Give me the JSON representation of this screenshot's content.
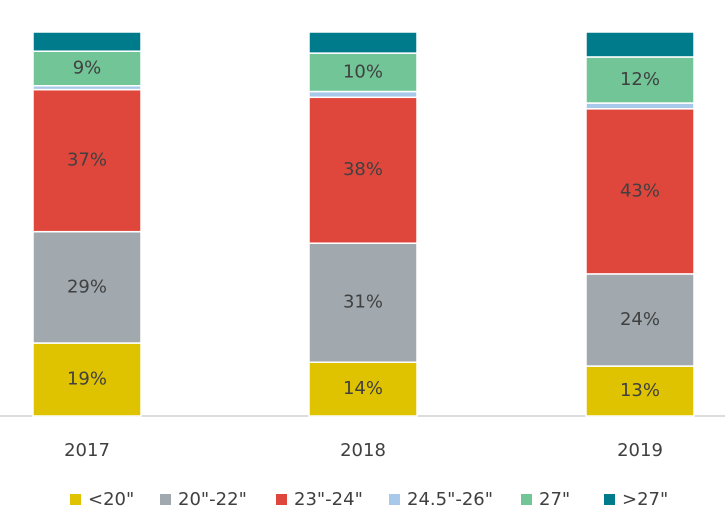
{
  "chart_data": {
    "type": "stacked-bar",
    "categories": [
      "2017",
      "2018",
      "2019"
    ],
    "ylim": [
      0,
      100
    ],
    "series": [
      {
        "name": "<20\"",
        "color": "#e0c300",
        "values": [
          19,
          14,
          13
        ],
        "value_labels": [
          "19%",
          "14%",
          "13%"
        ]
      },
      {
        "name": "20\"-22\"",
        "color": "#a1a9af",
        "values": [
          29,
          31,
          24
        ],
        "value_labels": [
          "29%",
          "31%",
          "24%"
        ]
      },
      {
        "name": "23\"-24\"",
        "color": "#e0473c",
        "values": [
          37,
          38,
          43
        ],
        "value_labels": [
          "37%",
          "38%",
          "43%"
        ]
      },
      {
        "name": "24.5\"-26\"",
        "color": "#a9c9ea",
        "values": [
          1,
          1.5,
          1.5
        ]
      },
      {
        "name": "27\"",
        "color": "#72c597",
        "values": [
          9,
          10,
          12
        ],
        "value_labels": [
          "9%",
          "10%",
          "12%"
        ]
      },
      {
        "name": ">27\"",
        "color": "#007b8b",
        "values": [
          5,
          5.5,
          6.5
        ]
      }
    ]
  }
}
